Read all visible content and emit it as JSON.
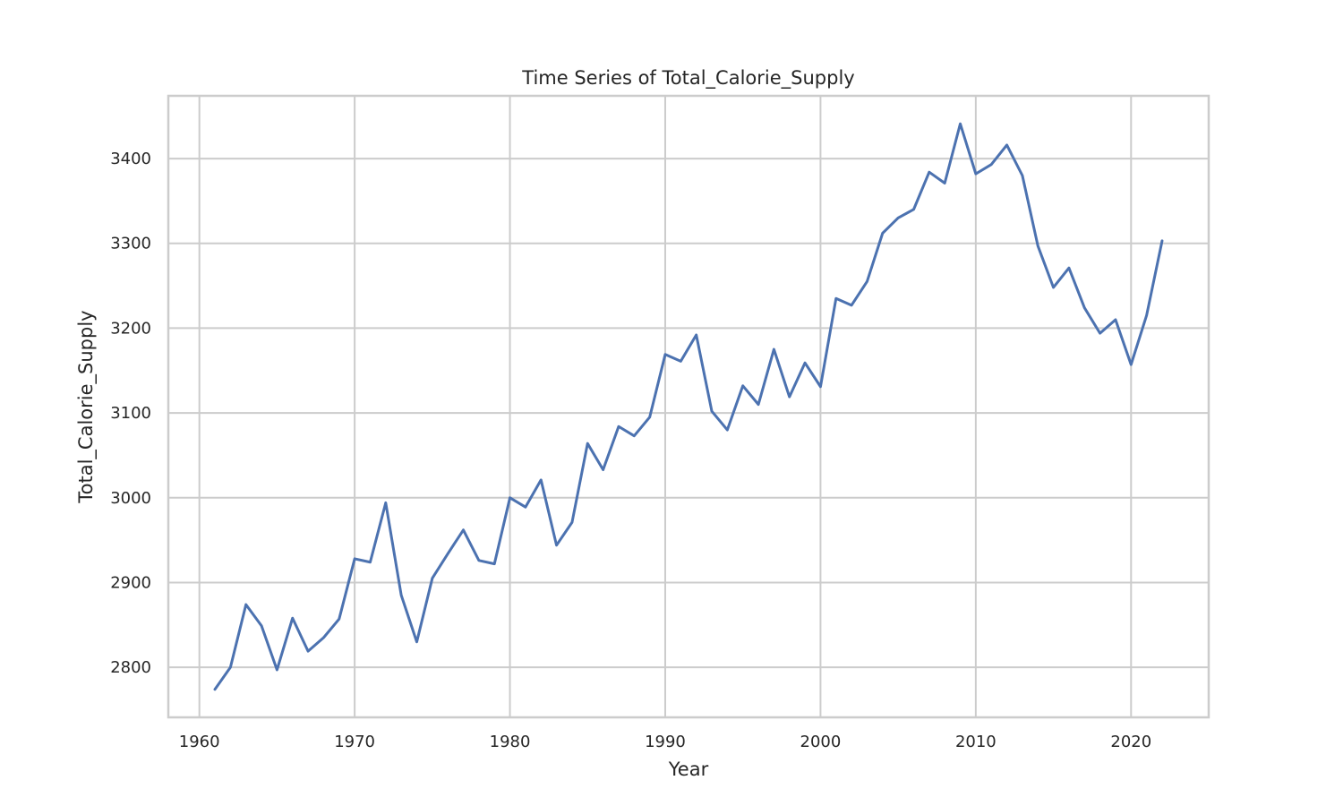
{
  "chart_data": {
    "type": "line",
    "title": "Time Series of Total_Calorie_Supply",
    "xlabel": "Year",
    "ylabel": "Total_Calorie_Supply",
    "xlim": [
      1958,
      2025
    ],
    "ylim": [
      2741,
      3474
    ],
    "xticks": [
      1960,
      1970,
      1980,
      1990,
      2000,
      2010,
      2020
    ],
    "yticks": [
      2800,
      2900,
      3000,
      3100,
      3200,
      3300,
      3400
    ],
    "grid": true,
    "legend": "none",
    "line_color": "#4c72b0",
    "series": [
      {
        "x": [
          1961,
          1962,
          1963,
          1964,
          1965,
          1966,
          1967,
          1968,
          1969,
          1970,
          1971,
          1972,
          1973,
          1974,
          1975,
          1976,
          1977,
          1978,
          1979,
          1980,
          1981,
          1982,
          1983,
          1984,
          1985,
          1986,
          1987,
          1988,
          1989,
          1990,
          1991,
          1992,
          1993,
          1994,
          1995,
          1996,
          1997,
          1998,
          1999,
          2000,
          2001,
          2002,
          2003,
          2004,
          2005,
          2006,
          2007,
          2008,
          2009,
          2010,
          2011,
          2012,
          2013,
          2014,
          2015,
          2016,
          2017,
          2018,
          2019,
          2020,
          2021,
          2022
        ],
        "values": [
          2774,
          2800,
          2874,
          2849,
          2797,
          2858,
          2819,
          2835,
          2857,
          2928,
          2924,
          2994,
          2885,
          2830,
          2905,
          2934,
          2962,
          2926,
          2922,
          3000,
          2989,
          3021,
          2944,
          2971,
          3064,
          3033,
          3084,
          3073,
          3095,
          3169,
          3161,
          3192,
          3102,
          3080,
          3132,
          3110,
          3175,
          3119,
          3159,
          3131,
          3235,
          3227,
          3255,
          3312,
          3330,
          3340,
          3384,
          3371,
          3441,
          3382,
          3393,
          3416,
          3380,
          3297,
          3248,
          3271,
          3224,
          3194,
          3210,
          3157,
          3215,
          3303
        ]
      }
    ]
  }
}
